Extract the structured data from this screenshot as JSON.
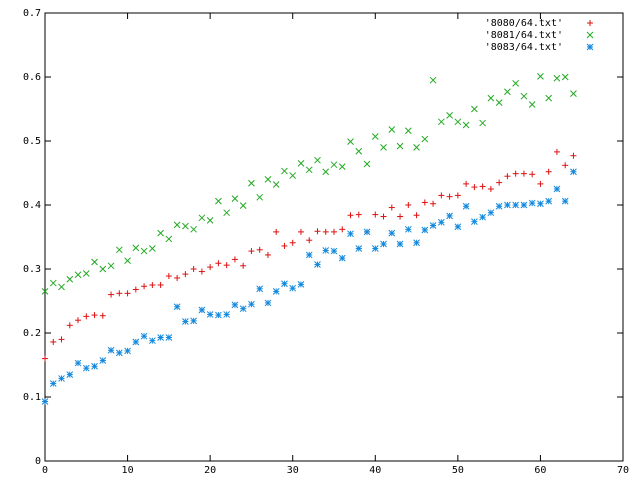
{
  "chart_data": {
    "type": "scatter",
    "title": "",
    "xlabel": "",
    "ylabel": "",
    "xlim": [
      0,
      70
    ],
    "ylim": [
      0,
      0.7
    ],
    "xticks": [
      "0",
      "10",
      "20",
      "30",
      "40",
      "50",
      "60",
      "70"
    ],
    "yticks": [
      "0",
      "0.1",
      "0.2",
      "0.3",
      "0.4",
      "0.5",
      "0.6",
      "0.7"
    ],
    "grid": false,
    "legend_position": "top-right",
    "x": [
      0,
      1,
      2,
      3,
      4,
      5,
      6,
      7,
      8,
      9,
      10,
      11,
      12,
      13,
      14,
      15,
      16,
      17,
      18,
      19,
      20,
      21,
      22,
      23,
      24,
      25,
      26,
      27,
      28,
      29,
      30,
      31,
      32,
      33,
      34,
      35,
      36,
      37,
      38,
      39,
      40,
      41,
      42,
      43,
      44,
      45,
      46,
      47,
      48,
      49,
      50,
      51,
      52,
      53,
      54,
      55,
      56,
      57,
      58,
      59,
      60,
      61,
      62,
      63,
      64
    ],
    "series": [
      {
        "name": "'8080/64.txt'",
        "marker": "plus",
        "color": "#dd1111",
        "values": [
          0.16,
          0.186,
          0.19,
          0.212,
          0.22,
          0.226,
          0.228,
          0.227,
          0.26,
          0.262,
          0.262,
          0.268,
          0.273,
          0.275,
          0.275,
          0.289,
          0.286,
          0.292,
          0.3,
          0.296,
          0.303,
          0.309,
          0.306,
          0.315,
          0.305,
          0.328,
          0.33,
          0.322,
          0.358,
          0.336,
          0.341,
          0.358,
          0.345,
          0.359,
          0.358,
          0.358,
          0.362,
          0.384,
          0.385,
          0.358,
          0.385,
          0.382,
          0.396,
          0.382,
          0.4,
          0.384,
          0.404,
          0.402,
          0.415,
          0.413,
          0.415,
          0.433,
          0.428,
          0.429,
          0.425,
          0.435,
          0.445,
          0.449,
          0.449,
          0.448,
          0.433,
          0.452,
          0.483,
          0.462,
          0.477
        ]
      },
      {
        "name": "'8081/64.txt'",
        "marker": "cross",
        "color": "#22aa22",
        "values": [
          0.265,
          0.278,
          0.272,
          0.284,
          0.291,
          0.293,
          0.311,
          0.3,
          0.305,
          0.33,
          0.313,
          0.333,
          0.328,
          0.332,
          0.356,
          0.347,
          0.369,
          0.367,
          0.362,
          0.38,
          0.376,
          0.406,
          0.388,
          0.41,
          0.399,
          0.434,
          0.412,
          0.44,
          0.432,
          0.453,
          0.446,
          0.465,
          0.455,
          0.47,
          0.452,
          0.463,
          0.46,
          0.499,
          0.484,
          0.464,
          0.507,
          0.49,
          0.518,
          0.492,
          0.516,
          0.49,
          0.503,
          0.595,
          0.53,
          0.54,
          0.53,
          0.525,
          0.55,
          0.528,
          0.567,
          0.56,
          0.577,
          0.59,
          0.57,
          0.557,
          0.601,
          0.567,
          0.598,
          0.6,
          0.574
        ]
      },
      {
        "name": "'8083/64.txt'",
        "marker": "star",
        "color": "#1188dd",
        "values": [
          0.093,
          0.121,
          0.129,
          0.135,
          0.153,
          0.145,
          0.148,
          0.157,
          0.173,
          0.169,
          0.172,
          0.186,
          0.195,
          0.188,
          0.193,
          0.193,
          0.241,
          0.218,
          0.219,
          0.236,
          0.229,
          0.228,
          0.229,
          0.244,
          0.238,
          0.245,
          0.269,
          0.247,
          0.265,
          0.277,
          0.27,
          0.276,
          0.322,
          0.307,
          0.329,
          0.328,
          0.317,
          0.355,
          0.332,
          0.358,
          0.332,
          0.339,
          0.356,
          0.339,
          0.362,
          0.341,
          0.361,
          0.368,
          0.373,
          0.383,
          0.366,
          0.398,
          0.374,
          0.381,
          0.388,
          0.398,
          0.4,
          0.4,
          0.4,
          0.403,
          0.402,
          0.406,
          0.425,
          0.406,
          0.452
        ]
      }
    ]
  }
}
